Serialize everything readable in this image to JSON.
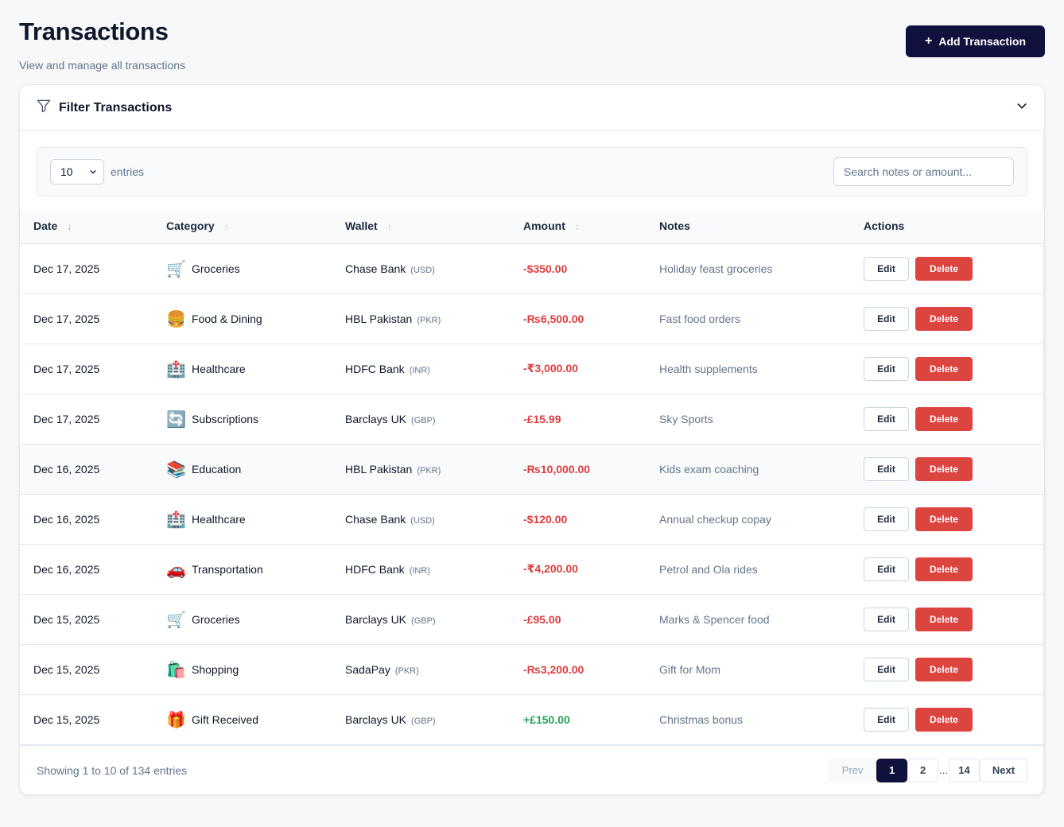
{
  "header": {
    "title": "Transactions",
    "subtitle": "View and manage all transactions",
    "add_button_icon": "+",
    "add_button_label": "Add Transaction"
  },
  "filter": {
    "icon": "filter-icon",
    "title": "Filter Transactions",
    "toggle_icon": "chevron-down-icon"
  },
  "controls": {
    "page_size": "10",
    "entries_label": "entries",
    "search_placeholder": "Search notes or amount..."
  },
  "table": {
    "columns": [
      {
        "label": "Date",
        "sort": "desc"
      },
      {
        "label": "Category",
        "sort": "none"
      },
      {
        "label": "Wallet",
        "sort": "none"
      },
      {
        "label": "Amount",
        "sort": "none"
      },
      {
        "label": "Notes",
        "sort": null
      },
      {
        "label": "Actions",
        "sort": null
      }
    ],
    "rows": [
      {
        "date": "Dec 17, 2025",
        "category_icon": "🛒",
        "category": "Groceries",
        "wallet": "Chase Bank",
        "currency": "(USD)",
        "amount": "-$350.00",
        "type": "neg",
        "notes": "Holiday feast groceries"
      },
      {
        "date": "Dec 17, 2025",
        "category_icon": "🍔",
        "category": "Food & Dining",
        "wallet": "HBL Pakistan",
        "currency": "(PKR)",
        "amount": "-₨6,500.00",
        "type": "neg",
        "notes": "Fast food orders"
      },
      {
        "date": "Dec 17, 2025",
        "category_icon": "🏥",
        "category": "Healthcare",
        "wallet": "HDFC Bank",
        "currency": "(INR)",
        "amount": "-₹3,000.00",
        "type": "neg",
        "notes": "Health supplements"
      },
      {
        "date": "Dec 17, 2025",
        "category_icon": "🔄",
        "category": "Subscriptions",
        "wallet": "Barclays UK",
        "currency": "(GBP)",
        "amount": "-£15.99",
        "type": "neg",
        "notes": "Sky Sports"
      },
      {
        "date": "Dec 16, 2025",
        "category_icon": "📚",
        "category": "Education",
        "wallet": "HBL Pakistan",
        "currency": "(PKR)",
        "amount": "-₨10,000.00",
        "type": "neg",
        "notes": "Kids exam coaching"
      },
      {
        "date": "Dec 16, 2025",
        "category_icon": "🏥",
        "category": "Healthcare",
        "wallet": "Chase Bank",
        "currency": "(USD)",
        "amount": "-$120.00",
        "type": "neg",
        "notes": "Annual checkup copay"
      },
      {
        "date": "Dec 16, 2025",
        "category_icon": "🚗",
        "category": "Transportation",
        "wallet": "HDFC Bank",
        "currency": "(INR)",
        "amount": "-₹4,200.00",
        "type": "neg",
        "notes": "Petrol and Ola rides"
      },
      {
        "date": "Dec 15, 2025",
        "category_icon": "🛒",
        "category": "Groceries",
        "wallet": "Barclays UK",
        "currency": "(GBP)",
        "amount": "-£95.00",
        "type": "neg",
        "notes": "Marks & Spencer food"
      },
      {
        "date": "Dec 15, 2025",
        "category_icon": "🛍️",
        "category": "Shopping",
        "wallet": "SadaPay",
        "currency": "(PKR)",
        "amount": "-₨3,200.00",
        "type": "neg",
        "notes": "Gift for Mom"
      },
      {
        "date": "Dec 15, 2025",
        "category_icon": "🎁",
        "category": "Gift Received",
        "wallet": "Barclays UK",
        "currency": "(GBP)",
        "amount": "+£150.00",
        "type": "pos",
        "notes": "Christmas bonus"
      }
    ],
    "edit_label": "Edit",
    "delete_label": "Delete",
    "hovered_row": 4
  },
  "footer": {
    "showing": "Showing 1 to 10 of 134 entries",
    "prev_label": "Prev",
    "pages": [
      "1",
      "2",
      "...",
      "14"
    ],
    "current_page": "1",
    "next_label": "Next"
  },
  "colors": {
    "primary": "#11113d",
    "danger": "#dc4440",
    "negative_amount": "#dc3e3e",
    "positive_amount": "#22a455"
  }
}
